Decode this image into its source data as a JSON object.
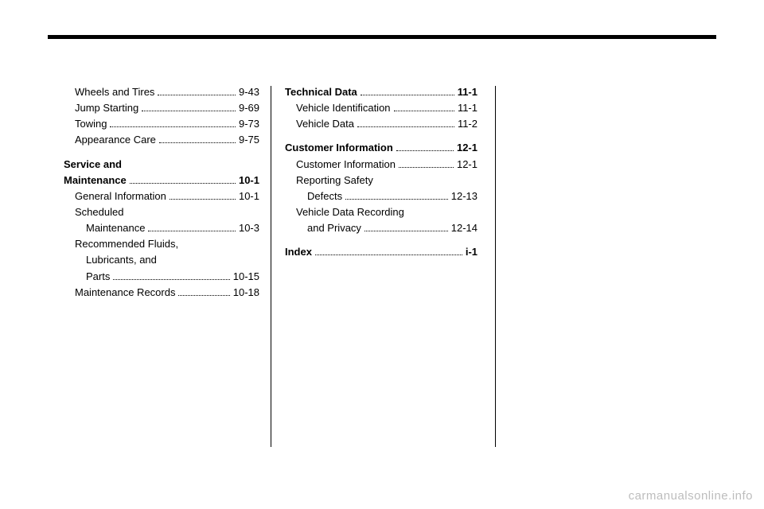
{
  "col1": [
    {
      "label": "Wheels and Tires",
      "page": "9-43",
      "indent": 1,
      "bold": false
    },
    {
      "label": "Jump Starting",
      "page": "9-69",
      "indent": 1,
      "bold": false
    },
    {
      "label": "Towing",
      "page": "9-73",
      "indent": 1,
      "bold": false
    },
    {
      "label": "Appearance Care",
      "page": "9-75",
      "indent": 1,
      "bold": false
    },
    {
      "gap": true
    },
    {
      "label": "Service and",
      "page": "",
      "indent": 0,
      "bold": true,
      "nodots": true
    },
    {
      "label": "Maintenance",
      "page": "10-1",
      "indent": 0,
      "bold": true,
      "cont": true
    },
    {
      "label": "General Information",
      "page": "10-1",
      "indent": 1,
      "bold": false
    },
    {
      "label": "Scheduled",
      "page": "",
      "indent": 1,
      "bold": false,
      "nodots": true
    },
    {
      "label": "Maintenance",
      "page": "10-3",
      "indent": 2,
      "bold": false
    },
    {
      "label": "Recommended Fluids,",
      "page": "",
      "indent": 1,
      "bold": false,
      "nodots": true
    },
    {
      "label": "Lubricants, and",
      "page": "",
      "indent": 2,
      "bold": false,
      "nodots": true
    },
    {
      "label": "Parts",
      "page": "10-15",
      "indent": 2,
      "bold": false
    },
    {
      "label": "Maintenance Records",
      "page": "10-18",
      "indent": 1,
      "bold": false
    }
  ],
  "col2": [
    {
      "label": "Technical Data",
      "page": "11-1",
      "indent": 0,
      "bold": true
    },
    {
      "label": "Vehicle Identification",
      "page": "11-1",
      "indent": 1,
      "bold": false
    },
    {
      "label": "Vehicle Data",
      "page": "11-2",
      "indent": 1,
      "bold": false
    },
    {
      "gap": true
    },
    {
      "label": "Customer Information",
      "page": "12-1",
      "indent": 0,
      "bold": true
    },
    {
      "label": "Customer Information",
      "page": "12-1",
      "indent": 1,
      "bold": false
    },
    {
      "label": "Reporting Safety",
      "page": "",
      "indent": 1,
      "bold": false,
      "nodots": true
    },
    {
      "label": "Defects",
      "page": "12-13",
      "indent": 2,
      "bold": false
    },
    {
      "label": "Vehicle Data Recording",
      "page": "",
      "indent": 1,
      "bold": false,
      "nodots": true
    },
    {
      "label": "and Privacy",
      "page": "12-14",
      "indent": 2,
      "bold": false
    },
    {
      "gap": true
    },
    {
      "label": "Index",
      "page": "i-1",
      "indent": 0,
      "bold": true
    }
  ],
  "watermark": "carmanualsonline.info"
}
